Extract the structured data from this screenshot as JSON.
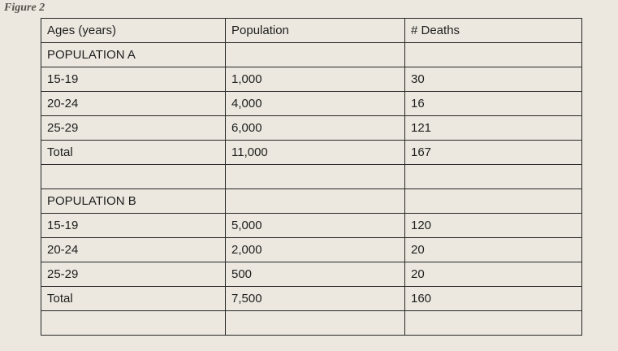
{
  "figure_label": "Figure 2",
  "table": {
    "headers": [
      "Ages (years)",
      "Population",
      "# Deaths"
    ],
    "rows": [
      {
        "cells": [
          "POPULATION A",
          "",
          ""
        ]
      },
      {
        "cells": [
          "15-19",
          "1,000",
          "30"
        ]
      },
      {
        "cells": [
          "20-24",
          "4,000",
          "16"
        ]
      },
      {
        "cells": [
          "25-29",
          "6,000",
          "121"
        ]
      },
      {
        "cells": [
          "Total",
          "11,000",
          "167"
        ]
      },
      {
        "cells": [
          "",
          "",
          ""
        ]
      },
      {
        "cells": [
          "POPULATION B",
          "",
          ""
        ]
      },
      {
        "cells": [
          "15-19",
          "5,000",
          "120"
        ]
      },
      {
        "cells": [
          "20-24",
          "2,000",
          "20"
        ]
      },
      {
        "cells": [
          "25-29",
          "500",
          "20"
        ]
      },
      {
        "cells": [
          "Total",
          "7,500",
          "160"
        ]
      },
      {
        "cells": [
          "",
          "",
          ""
        ]
      }
    ]
  },
  "colors": {
    "page_background": "#ece8df",
    "table_border": "#262626",
    "text": "#1e1e1e",
    "figure_label": "#57514c"
  }
}
